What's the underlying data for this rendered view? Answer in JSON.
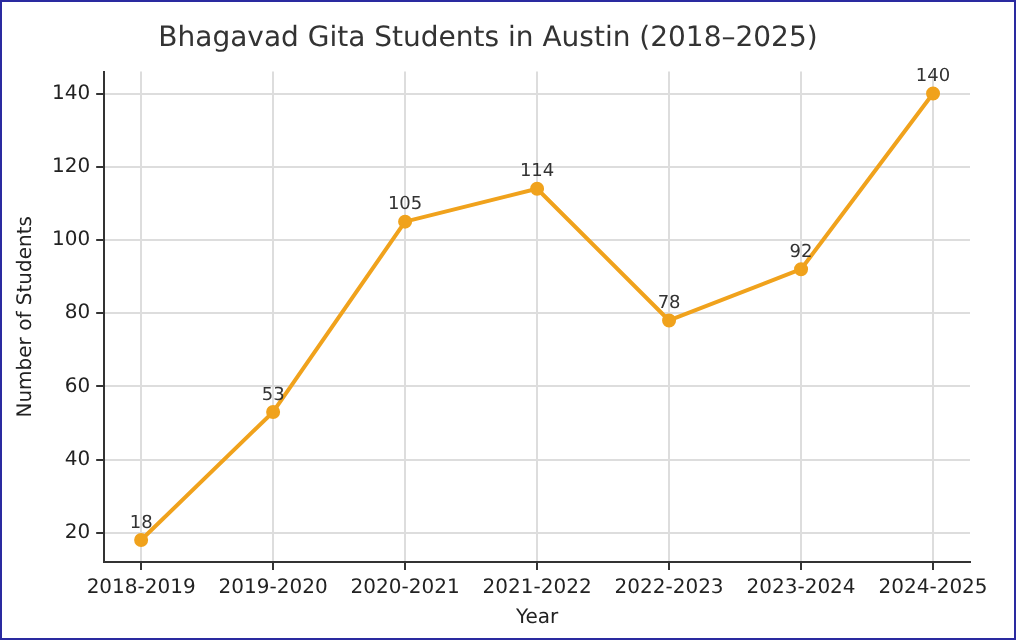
{
  "chart_data": {
    "type": "line",
    "title": "Bhagavad Gita Students in Austin (2018–2025)",
    "xlabel": "Year",
    "ylabel": "Number of Students",
    "categories": [
      "2018-2019",
      "2019-2020",
      "2020-2021",
      "2021-2022",
      "2022-2023",
      "2023-2024",
      "2024-2025"
    ],
    "series": [
      {
        "color": "#f0a21c",
        "values": [
          18,
          53,
          105,
          114,
          78,
          92,
          140
        ]
      }
    ],
    "ylim": [
      12,
      146
    ],
    "yticks": [
      20,
      40,
      60,
      80,
      100,
      120,
      140
    ],
    "grid": true,
    "legend": false,
    "marker": "circle",
    "line_style": "solid",
    "data_labels": true
  }
}
